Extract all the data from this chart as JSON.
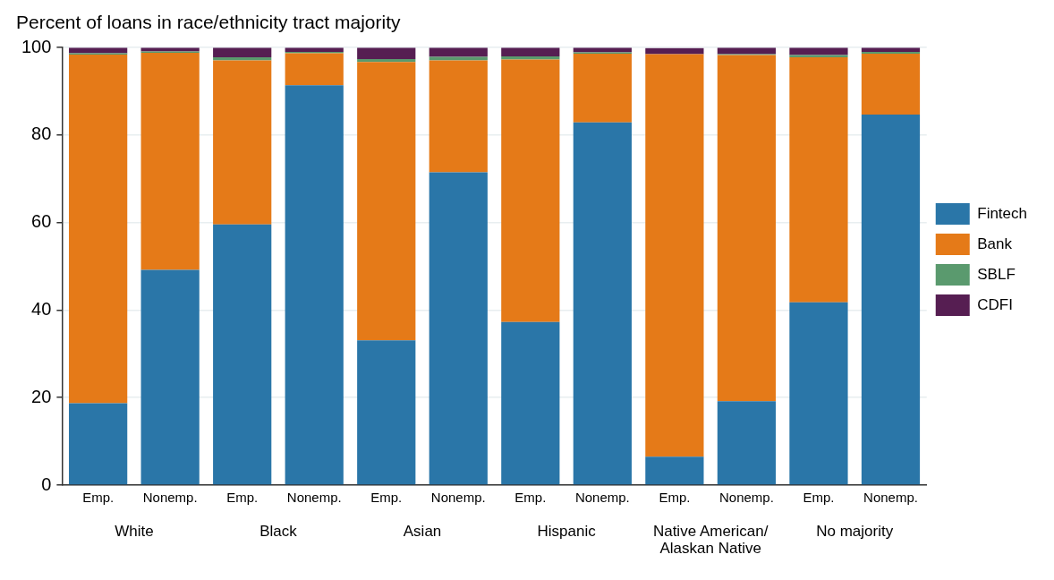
{
  "chart_data": {
    "type": "bar",
    "title": "Percent of loans in race/ethnicity tract majority",
    "categories": [
      "Emp.",
      "Nonemp.",
      "Emp.",
      "Nonemp.",
      "Emp.",
      "Nonemp.",
      "Emp.",
      "Nonemp.",
      "Emp.",
      "Nonemp.",
      "Emp.",
      "Nonemp."
    ],
    "annotations": [
      "White",
      "Black",
      "Asian",
      "Hispanic",
      "Native American/Alaskan Native",
      "No majority"
    ],
    "stacked": true,
    "series": [
      {
        "name": "Fintech",
        "color": "#2a76a8",
        "values": [
          18.7,
          49.2,
          59.6,
          91.4,
          33.1,
          71.5,
          37.3,
          82.9,
          6.5,
          19.2,
          41.8,
          84.7
        ]
      },
      {
        "name": "Bank",
        "color": "#e57a18",
        "values": [
          79.7,
          49.6,
          37.5,
          7.3,
          63.6,
          25.6,
          60.0,
          15.7,
          92.0,
          79.1,
          56.0,
          13.9
        ]
      },
      {
        "name": "SBLF",
        "color": "#5a9a6e",
        "values": [
          0.3,
          0.3,
          0.7,
          0.3,
          0.7,
          0.8,
          0.7,
          0.3,
          null,
          0.2,
          0.5,
          0.4
        ]
      },
      {
        "name": "CDFI",
        "color": "#561e52",
        "values": [
          1.3,
          0.9,
          2.2,
          1.0,
          2.6,
          2.1,
          2.0,
          1.1,
          1.4,
          1.5,
          1.7,
          1.0
        ]
      }
    ],
    "ylim": [
      0,
      100
    ],
    "yticks": [
      0,
      20,
      40,
      60,
      80,
      100
    ],
    "grid": "y",
    "legend": "right"
  }
}
